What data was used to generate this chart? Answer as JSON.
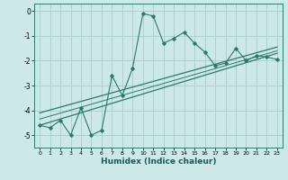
{
  "xlabel": "Humidex (Indice chaleur)",
  "bg_color": "#cce8e8",
  "grid_color": "#aacccc",
  "line_color": "#2a7a6a",
  "xlim": [
    -0.5,
    23.5
  ],
  "ylim": [
    -5.5,
    0.3
  ],
  "xticks": [
    0,
    1,
    2,
    3,
    4,
    5,
    6,
    7,
    8,
    9,
    10,
    11,
    12,
    13,
    14,
    15,
    16,
    17,
    18,
    19,
    20,
    21,
    22,
    23
  ],
  "yticks": [
    0,
    -1,
    -2,
    -3,
    -4,
    -5
  ],
  "main_x": [
    0,
    1,
    2,
    3,
    4,
    5,
    6,
    7,
    8,
    9,
    10,
    11,
    12,
    13,
    14,
    15,
    16,
    17,
    18,
    19,
    20,
    21,
    22,
    23
  ],
  "main_y": [
    -4.6,
    -4.7,
    -4.4,
    -5.0,
    -3.9,
    -5.0,
    -4.8,
    -2.6,
    -3.4,
    -2.3,
    -0.1,
    -0.2,
    -1.3,
    -1.1,
    -0.85,
    -1.3,
    -1.65,
    -2.2,
    -2.1,
    -1.5,
    -2.0,
    -1.8,
    -1.85,
    -1.95
  ],
  "line1_x": [
    0,
    23
  ],
  "line1_y": [
    -4.6,
    -1.7
  ],
  "line2_x": [
    0,
    23
  ],
  "line2_y": [
    -4.1,
    -1.45
  ],
  "line3_x": [
    0,
    23
  ],
  "line3_y": [
    -4.35,
    -1.6
  ]
}
